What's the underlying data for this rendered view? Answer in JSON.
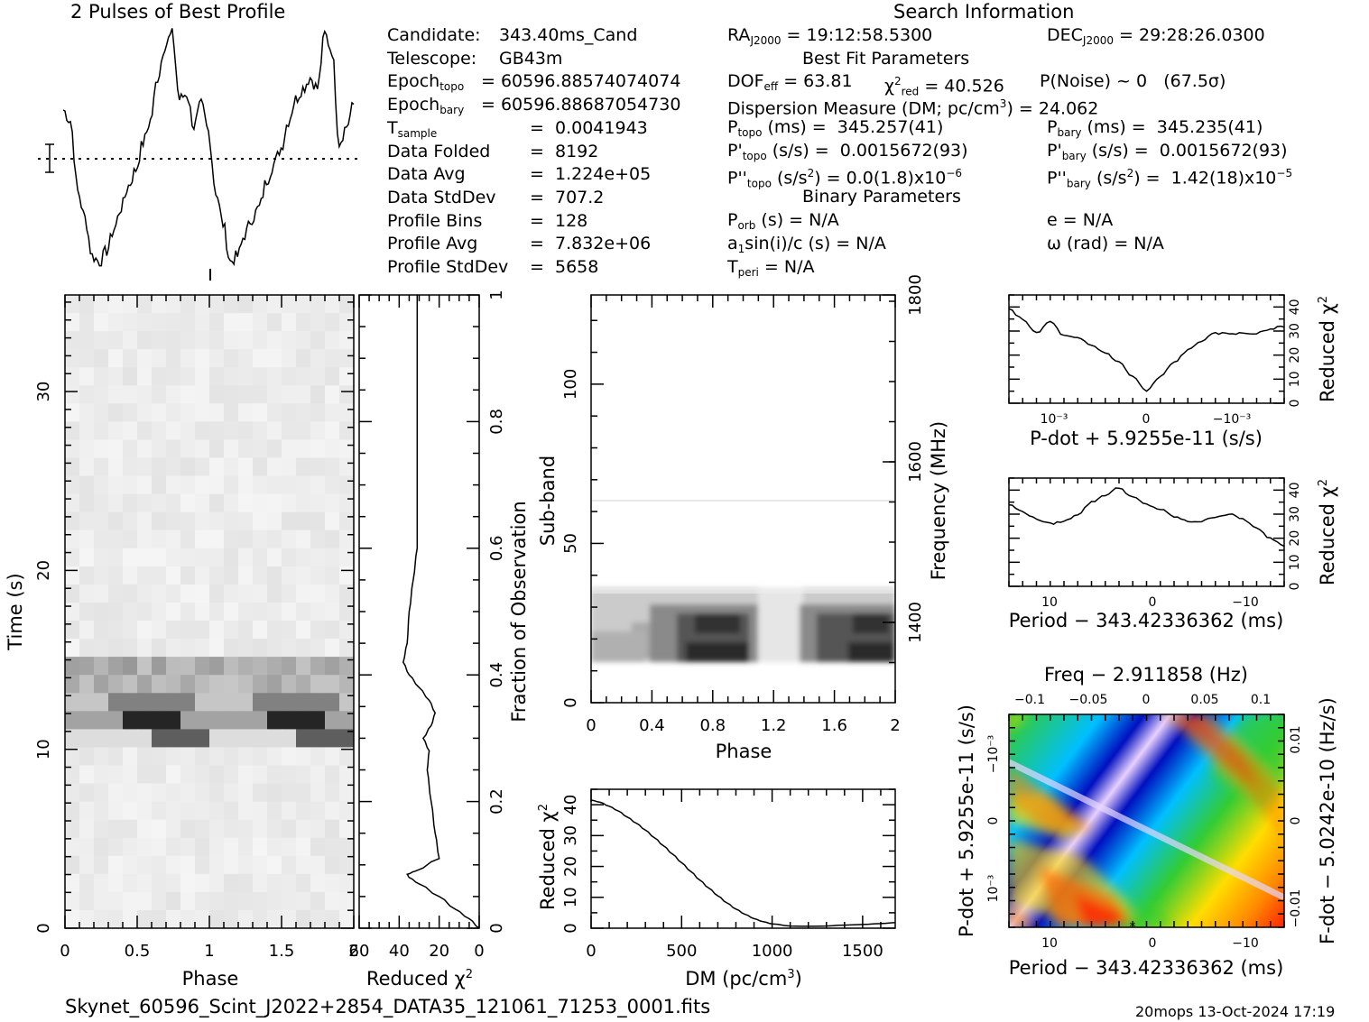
{
  "header": {
    "profile_title": "2 Pulses of Best Profile",
    "search_title": "Search Information"
  },
  "info_col1": [
    {
      "k": "Candidate:",
      "v": "343.40ms_Cand",
      "kx": 429,
      "vx": 553
    },
    {
      "k": "Telescope:",
      "v": "GB43m",
      "kx": 429,
      "vx": 553
    },
    {
      "k": "Epoch",
      "sub": "topo",
      "v": "= 60596.88574074074",
      "kx": 429,
      "vx": 533
    },
    {
      "k": "Epoch",
      "sub": "bary",
      "v": "= 60596.88687054730",
      "kx": 429,
      "vx": 533
    },
    {
      "k": "T",
      "sub": "sample",
      "v": "=  0.0041943",
      "kx": 429,
      "vx": 587
    },
    {
      "k": "Data Folded",
      "v": "=  8192",
      "kx": 429,
      "vx": 587
    },
    {
      "k": "Data Avg",
      "v": "=  1.224e+05",
      "kx": 429,
      "vx": 587
    },
    {
      "k": "Data StdDev",
      "v": "=  707.2",
      "kx": 429,
      "vx": 587
    },
    {
      "k": "Profile Bins",
      "v": "=  128",
      "kx": 429,
      "vx": 587
    },
    {
      "k": "Profile Avg",
      "v": "=  7.832e+06",
      "kx": 429,
      "vx": 587
    },
    {
      "k": "Profile StdDev",
      "v": "=  5658",
      "kx": 429,
      "vx": 587
    }
  ],
  "info_col2": {
    "ra_label": "RA",
    "ra_sub": "J2000",
    "ra_value": " = 19:12:58.5300",
    "dec_label": "DEC",
    "dec_sub": "J2000",
    "dec_value": " = 29:28:26.0300",
    "best_fit_title": "Best Fit Parameters",
    "dof_label": "DOF",
    "dof_sub": "eff",
    "dof_value": " = 63.81",
    "chi_label": "χ",
    "chi_sup": "2",
    "chi_sub": "red",
    "chi_value": " = 40.526",
    "pnoise": "P(Noise) ~ 0   (67.5σ)",
    "dm_label": "Dispersion Measure (DM; pc/cm",
    "dm_sup": "3",
    "dm_value": ") = 24.062",
    "ptopo_label": "P",
    "ptopo_sub": "topo",
    "ptopo_value": " (ms) =  345.257(41)",
    "pbary_label": "P",
    "pbary_sub": "bary",
    "pbary_value": " (ms) =  345.235(41)",
    "pdtopo_label": "P'",
    "pdtopo_sub": "topo",
    "pdtopo_value": " (s/s) =  0.0015672(93)",
    "pdbary_label": "P'",
    "pdbary_sub": "bary",
    "pdbary_value": " (s/s) =  0.0015672(93)",
    "pddtopo_label": "P''",
    "pddtopo_sub": "topo",
    "pddtopo_value": " (s/s",
    "pddtopo_sup": "2",
    "pddtopo_value2": ") = 0.0(1.8)x10",
    "pddtopo_exp": "−6",
    "pddbary_label": "P''",
    "pddbary_sub": "bary",
    "pddbary_value": " (s/s",
    "pddbary_sup": "2",
    "pddbary_value2": ") =  1.42(18)x10",
    "pddbary_exp": "−5",
    "binary_title": "Binary Parameters",
    "porb_label": "P",
    "porb_sub": "orb",
    "porb_value": " (s) = N/A",
    "e_value": "e = N/A",
    "a1_label": "a",
    "a1_sub": "1",
    "a1_value": "sin(i)/c (s) = N/A",
    "omega_value": "ω (rad) = N/A",
    "tperi_label": "T",
    "tperi_sub": "peri",
    "tperi_value": " = N/A"
  },
  "footer": {
    "filename": "Skynet_60596_Scint_J2022+2854_DATA35_121061_71253_0001.fits",
    "stamp": "20mops 13-Oct-2024 17:19"
  },
  "axes": {
    "phase_label": "Phase",
    "time_label": "Time (s)",
    "reduced_chi2_label": "Reduced χ",
    "fraction_label": "Fraction of Observation",
    "subband_label": "Sub-band",
    "frequency_label": "Frequency (MHz)",
    "dm_label": "DM (pc/cm",
    "pdot_label": "P-dot + 5.9255e-11 (s/s)",
    "period_label": "Period − 343.42336362 (ms)",
    "freq_label": "Freq − 2.911858 (Hz)",
    "fdot_label": "F-dot − 5.0242e-10 (Hz/s)",
    "superscript_2": "2",
    "superscript_3": "3"
  },
  "chart_data": [
    {
      "type": "line",
      "title": "2 Pulses of Best Profile",
      "x_label": "Phase",
      "x_range": [
        0,
        2
      ],
      "x": [
        0.0,
        0.05,
        0.1,
        0.15,
        0.2,
        0.25,
        0.3,
        0.35,
        0.4,
        0.45,
        0.5,
        0.55,
        0.6,
        0.65,
        0.7,
        0.75,
        0.8,
        0.85,
        0.9,
        0.95,
        1.0,
        1.05,
        1.1,
        1.15,
        1.2,
        1.25,
        1.3,
        1.35,
        1.4,
        1.45,
        1.5,
        1.55,
        1.6,
        1.65,
        1.7,
        1.75,
        1.8,
        1.85,
        1.9,
        1.95,
        2.0
      ],
      "y": [
        0.45,
        0.35,
        -0.3,
        -0.55,
        -0.9,
        -0.95,
        -0.85,
        -0.65,
        -0.45,
        -0.25,
        -0.1,
        0.15,
        0.35,
        0.75,
        1.05,
        1.15,
        0.55,
        0.6,
        0.3,
        0.5,
        0.25,
        -0.3,
        -0.6,
        -0.95,
        -0.9,
        -0.7,
        -0.55,
        -0.45,
        -0.2,
        -0.05,
        0.1,
        0.35,
        0.55,
        0.65,
        0.75,
        0.65,
        1.15,
        1.0,
        0.15,
        0.3,
        0.5
      ]
    },
    {
      "type": "heatmap",
      "title": "Time vs Phase",
      "x_label": "Phase",
      "x_range": [
        0,
        2
      ],
      "y_label": "Time (s)",
      "y_range": [
        0,
        35.4
      ],
      "x_ticks": [
        "0",
        "0.5",
        "1",
        "1.5",
        "2"
      ],
      "y_ticks": [
        "0",
        "10",
        "20",
        "30"
      ]
    },
    {
      "type": "line",
      "title": "Reduced chi2 vs Fraction of Observation",
      "x_label": "Reduced χ2",
      "x_range": [
        60,
        0
      ],
      "y_label": "Fraction of Observation",
      "y_range": [
        0,
        1
      ],
      "x_ticks": [
        "60",
        "40",
        "20",
        "0"
      ],
      "y_ticks": [
        "0",
        "0.2",
        "0.4",
        "0.6",
        "0.8",
        "1"
      ],
      "fraction": [
        0.0,
        0.015,
        0.03,
        0.05,
        0.07,
        0.08,
        0.085,
        0.09,
        0.11,
        0.15,
        0.2,
        0.25,
        0.28,
        0.3,
        0.32,
        0.34,
        0.36,
        0.38,
        0.4,
        0.42,
        0.45,
        0.5,
        0.55,
        0.6,
        0.7,
        0.8,
        0.9,
        1.0
      ],
      "chi2": [
        0,
        5,
        12,
        20,
        30,
        35,
        36,
        32,
        20,
        22,
        24,
        26,
        25,
        28,
        24,
        22,
        25,
        30,
        35,
        38,
        36,
        35,
        33,
        31,
        31,
        31,
        31,
        31
      ]
    },
    {
      "type": "heatmap",
      "title": "Sub-band vs Phase",
      "x_label": "Phase",
      "x_range": [
        0,
        2
      ],
      "y_label": "Sub-band",
      "y_range": [
        0,
        128
      ],
      "y2_label": "Frequency (MHz)",
      "y2_ticks": [
        "1400",
        "1600",
        "1800"
      ],
      "x_ticks": [
        "0",
        "0.4",
        "0.8",
        "1.2",
        "1.6",
        "2"
      ],
      "y_ticks": [
        "0",
        "50",
        "100"
      ]
    },
    {
      "type": "line",
      "title": "Reduced chi2 vs DM",
      "x_label": "DM (pc/cm3)",
      "x_range": [
        0,
        1680
      ],
      "y_label": "Reduced χ2",
      "y_range": [
        0,
        45
      ],
      "x_ticks": [
        "0",
        "500",
        "1000",
        "1500"
      ],
      "y_ticks": [
        "0",
        "10",
        "20",
        "30",
        "40"
      ],
      "x": [
        0,
        50,
        100,
        150,
        200,
        250,
        300,
        350,
        400,
        450,
        500,
        550,
        600,
        650,
        700,
        750,
        800,
        850,
        900,
        950,
        1000,
        1100,
        1200,
        1300,
        1400,
        1500,
        1600,
        1680
      ],
      "y": [
        41.5,
        40.8,
        39.5,
        38,
        36,
        34,
        31.8,
        29.3,
        26.7,
        24,
        21.2,
        18.4,
        15.6,
        13,
        10.5,
        8.2,
        6.2,
        4.5,
        3.1,
        2.1,
        1.4,
        0.7,
        0.6,
        0.7,
        1.0,
        1.2,
        1.5,
        1.8
      ]
    },
    {
      "type": "line",
      "title": "Reduced chi2 vs P-dot",
      "x_label": "P-dot + 5.9255e-11 (s/s)",
      "y_label": "Reduced χ2",
      "y_range": [
        0,
        45
      ],
      "x_ticks": [
        "10⁻³",
        "0",
        "−10⁻³"
      ],
      "y_ticks": [
        "0",
        "10",
        "20",
        "30",
        "40"
      ],
      "x": [
        0,
        0.05,
        0.1,
        0.15,
        0.2,
        0.25,
        0.3,
        0.35,
        0.4,
        0.45,
        0.5,
        0.55,
        0.6,
        0.65,
        0.7,
        0.75,
        0.8,
        0.85,
        0.9,
        0.95,
        1.0
      ],
      "y": [
        39,
        35,
        29,
        34,
        28,
        27,
        24,
        21,
        17,
        11,
        5,
        11,
        17,
        22,
        26,
        29,
        29,
        29,
        29,
        31,
        32
      ]
    },
    {
      "type": "line",
      "title": "Reduced chi2 vs Period",
      "x_label": "Period − 343.42336362 (ms)",
      "y_label": "Reduced χ2",
      "y_range": [
        0,
        45
      ],
      "x_ticks": [
        "10",
        "0",
        "−10"
      ],
      "y_ticks": [
        "0",
        "10",
        "20",
        "30",
        "40"
      ],
      "x": [
        0,
        0.05,
        0.1,
        0.15,
        0.2,
        0.25,
        0.3,
        0.35,
        0.4,
        0.45,
        0.5,
        0.55,
        0.6,
        0.65,
        0.7,
        0.75,
        0.8,
        0.85,
        0.9,
        0.95,
        1.0
      ],
      "y": [
        34,
        31,
        28,
        26,
        27,
        30,
        35,
        38,
        41,
        37,
        34,
        32,
        29,
        27,
        27,
        29,
        30,
        28,
        24,
        20,
        17
      ]
    },
    {
      "type": "heatmap",
      "title": "P-dot vs Period chi2 map",
      "x_label": "Period − 343.42336362 (ms)",
      "y_label": "P-dot + 5.9255e-11 (s/s)",
      "x2_label": "Freq − 2.911858 (Hz)",
      "y2_label": "F-dot − 5.0242e-10 (Hz/s)",
      "x_ticks": [
        "10",
        "0",
        "−10"
      ],
      "x2_ticks": [
        "−0.1",
        "−0.05",
        "0",
        "0.05",
        "0.1"
      ],
      "y_ticks": [
        "10⁻³",
        "0",
        "−10⁻³"
      ],
      "y2_ticks": [
        "−0.01",
        "0",
        "0.01"
      ]
    }
  ]
}
